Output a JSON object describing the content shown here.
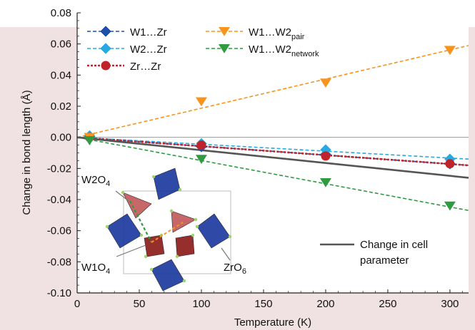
{
  "chart_data": {
    "type": "line",
    "xlabel": "Temperature (K)",
    "ylabel": "Change in bond length (Å)",
    "xlim": [
      0,
      315
    ],
    "ylim": [
      -0.1,
      0.08
    ],
    "xticks": [
      0,
      50,
      100,
      150,
      200,
      250,
      300
    ],
    "yticks": [
      0.08,
      0.06,
      0.04,
      0.02,
      0.0,
      -0.02,
      -0.04,
      -0.06,
      -0.08,
      -0.1
    ],
    "ytick_labels": [
      "0.08",
      "0.06",
      "0.04",
      "0.02",
      "0.00",
      "-0.02",
      "-0.04",
      "-0.06",
      "-0.08",
      "-0.10"
    ],
    "grid": false,
    "legend_position": "top-left",
    "series": [
      {
        "name": "W1…Zr",
        "marker": "diamond",
        "color": "#1f4fa8",
        "line": "dashed",
        "x": [
          10,
          100,
          200,
          300
        ],
        "y": [
          0.0,
          -0.006,
          -0.011,
          -0.017
        ],
        "fit_end": [
          315,
          -0.018
        ]
      },
      {
        "name": "W2…Zr",
        "marker": "diamond",
        "color": "#29a9e1",
        "line": "dashed",
        "x": [
          10,
          100,
          200,
          300
        ],
        "y": [
          0.001,
          -0.004,
          -0.008,
          -0.014
        ],
        "fit_end": [
          315,
          -0.014
        ]
      },
      {
        "name": "Zr…Zr",
        "marker": "circle",
        "color": "#c0242b",
        "line": "dotted",
        "x": [
          10,
          100,
          200,
          300
        ],
        "y": [
          0.0,
          -0.005,
          -0.012,
          -0.017
        ],
        "fit_end": [
          315,
          -0.018
        ]
      },
      {
        "name": "W1…W2",
        "name_sub": "pair",
        "marker": "triangle-down",
        "color": "#f7941d",
        "line": "dashed",
        "x": [
          10,
          100,
          200,
          300
        ],
        "y": [
          0.0,
          0.023,
          0.035,
          0.056
        ],
        "fit_end": [
          315,
          0.059
        ]
      },
      {
        "name": "W1…W2",
        "name_sub": "network",
        "marker": "triangle-down",
        "color": "#2f9a3f",
        "line": "dashed",
        "x": [
          10,
          100,
          200,
          300
        ],
        "y": [
          -0.002,
          -0.014,
          -0.029,
          -0.044
        ],
        "fit_end": [
          315,
          -0.047
        ]
      },
      {
        "name": "Change in cell parameter",
        "marker": "none",
        "color": "#555555",
        "line": "solid",
        "x": [
          0,
          315
        ],
        "y": [
          0.0,
          -0.026
        ]
      }
    ],
    "zero_line": true,
    "inset_labels": {
      "w2o4": "W2O",
      "w2o4_sub": "4",
      "w1o4": "W1O",
      "w1o4_sub": "4",
      "zro6": "ZrO",
      "zro6_sub": "6"
    }
  },
  "colors": {
    "background": "#f0e2e2",
    "plot_background": "#ffffff",
    "top_band": "#ffffff"
  }
}
